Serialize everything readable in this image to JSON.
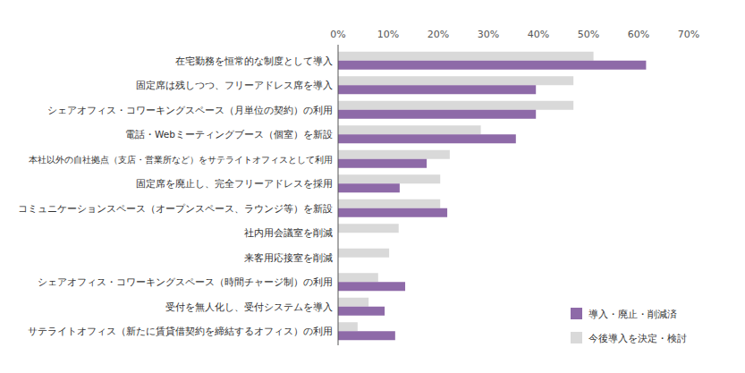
{
  "chart_data": {
    "type": "bar",
    "orientation": "horizontal",
    "categories": [
      "在宅勤務を恒常的な制度として導入",
      "固定席は残しつつ、フリーアドレス席を導入",
      "シェアオフィス・コワーキングスペース（月単位の契約）の利用",
      "電話・Webミーティングブース（個室）を新設",
      "本社以外の自社拠点（支店・営業所など）をサテライトオフィスとして利用",
      "固定席を廃止し、完全フリーアドレスを採用",
      "コミュニケーションスペース（オープンスペース、ラウンジ等）を新設",
      "社内用会議室を削減",
      "来客用応接室を削減",
      "シェアオフィス・コワーキングスペース（時間チャージ制）の利用",
      "受付を無人化し、受付システムを導入",
      "サテライトオフィス（新たに賃貸借契約を締結するオフィス）の利用"
    ],
    "series": [
      {
        "name": "導入・廃止・削減済",
        "color": "#8e6aa8",
        "values": [
          61.5,
          39.5,
          39.5,
          35.5,
          17.7,
          12.3,
          21.8,
          0,
          0,
          13.4,
          9.3,
          11.4
        ]
      },
      {
        "name": "今後導入を決定・検討",
        "color": "#d9d9d9",
        "values": [
          51,
          47,
          47,
          28.5,
          22.3,
          20.4,
          20.4,
          12.1,
          10.2,
          8.0,
          6.1,
          3.9
        ]
      }
    ],
    "xlim": [
      0,
      70
    ],
    "xticks": [
      {
        "value": 0,
        "label": "0%"
      },
      {
        "value": 10,
        "label": "10%"
      },
      {
        "value": 20,
        "label": "20%"
      },
      {
        "value": 30,
        "label": "30%"
      },
      {
        "value": 40,
        "label": "40%"
      },
      {
        "value": 50,
        "label": "50%"
      },
      {
        "value": 60,
        "label": "60%"
      },
      {
        "value": 70,
        "label": "70%"
      }
    ],
    "grid": false,
    "legend": "bottom-right"
  }
}
